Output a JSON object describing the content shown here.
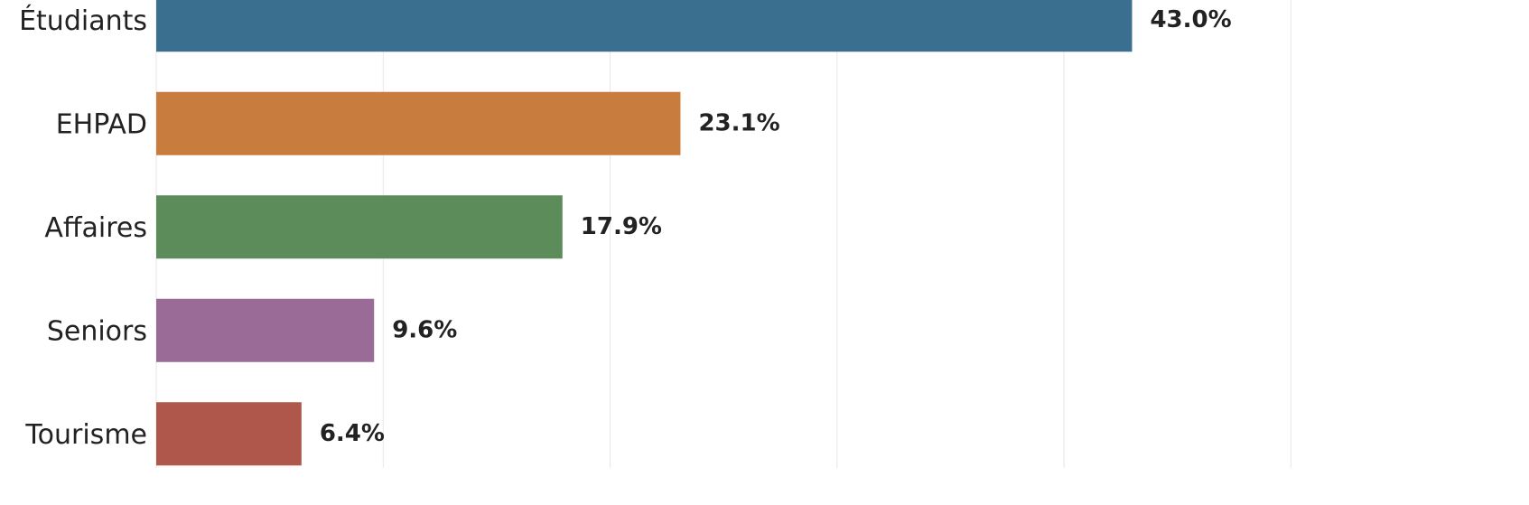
{
  "chart_data": {
    "type": "bar",
    "orientation": "horizontal",
    "categories": [
      "Étudiants",
      "EHPAD",
      "Affaires",
      "Seniors",
      "Tourisme"
    ],
    "values": [
      43.0,
      23.1,
      17.9,
      9.6,
      6.4
    ],
    "value_labels": [
      "43.0%",
      "23.1%",
      "17.9%",
      "9.6%",
      "6.4%"
    ],
    "colors": [
      "#3b6f8f",
      "#c87c3e",
      "#5c8c5a",
      "#9b6b97",
      "#ae574a"
    ],
    "xlim": [
      0,
      55
    ],
    "xticks": [
      0,
      10,
      20,
      30,
      40,
      50
    ],
    "grid": true
  }
}
